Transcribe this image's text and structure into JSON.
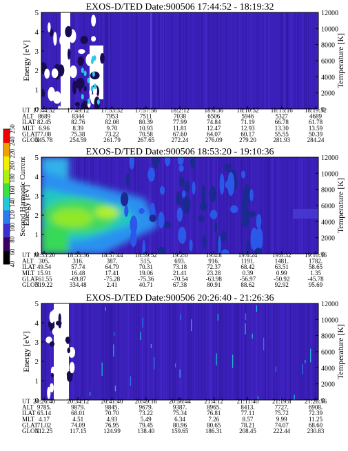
{
  "colors": {
    "background": "#ffffff",
    "plot_base": "#3a1fb8",
    "scale": [
      "#000000",
      "#3a0060",
      "#3b2fd0",
      "#2a7af0",
      "#20c8d8",
      "#3ce040",
      "#b0f010",
      "#f0f000",
      "#f0a000",
      "#f00000"
    ]
  },
  "colorbar": {
    "label": "Second Harmonic Current",
    "ticks": [
      "40",
      "60",
      "80",
      "100",
      "120",
      "140",
      "160",
      "180",
      "200",
      "220",
      "240",
      "250"
    ]
  },
  "chart_data": [
    {
      "type": "heatmap",
      "title": "EXOS-D/TED   Date:900506   17:44:52 - 18:19:32",
      "ylabel": "Energy [eV]",
      "ylabel_right": "Temperature [K]",
      "ylim": [
        0,
        5
      ],
      "yticks": [
        "0",
        "1",
        "2",
        "3",
        "4",
        "5"
      ],
      "ylim_right": [
        0,
        12000
      ],
      "yticks_right": [
        "0",
        "2000",
        "4000",
        "6000",
        "8000",
        "10000",
        "12000"
      ],
      "row_labels": [
        "UT",
        "ALT",
        "ILAT",
        "MLT",
        "GLAT",
        "GLON"
      ],
      "columns": [
        [
          "17:44:52",
          "8689",
          "82.45",
          "6.96",
          "77.08",
          "245.78"
        ],
        [
          "17:49:12",
          "8344",
          "82.76",
          "8.39",
          "75.38",
          "254.59"
        ],
        [
          "17:53:32",
          "7953",
          "82.08",
          "9.70",
          "73.22",
          "261.79"
        ],
        [
          "17:57:56",
          "7511",
          "80.39",
          "10.93",
          "70.58",
          "267.65"
        ],
        [
          "18:2:12",
          "7038",
          "77.99",
          "11.81",
          "67.60",
          "272.24"
        ],
        [
          "18:6:36",
          "6506",
          "74.84",
          "12.47",
          "64.07",
          "276.09"
        ],
        [
          "18:10:52",
          "5946",
          "71.19",
          "12.93",
          "60.17",
          "279.20"
        ],
        [
          "18:15:16",
          "5327",
          "66.78",
          "13.30",
          "55.55",
          "281.93"
        ],
        [
          "18:19:32",
          "4689",
          "61.78",
          "13.59",
          "50.39",
          "284.24"
        ]
      ]
    },
    {
      "type": "heatmap",
      "title": "EXOS-D/TED   Date:900506   18:53:20 - 19:10:36",
      "ylabel": "Energy [eV]",
      "ylabel_right": "Temperature [K]",
      "ylim": [
        0,
        5
      ],
      "yticks": [
        "0",
        "1",
        "2",
        "3",
        "4",
        "5"
      ],
      "ylim_right": [
        0,
        12000
      ],
      "yticks_right": [
        "0",
        "2000",
        "4000",
        "6000",
        "8000",
        "10000",
        "12000"
      ],
      "row_labels": [
        "UT",
        "ALT",
        "ILAT",
        "MLT",
        "GLAT",
        "GLON"
      ],
      "columns": [
        [
          "18:53:20",
          "305.",
          "49.54",
          "15.91",
          "-61.55",
          "319.22"
        ],
        [
          "18:55:36",
          "316.",
          "57.74",
          "16.48",
          "-69.87",
          "334.48"
        ],
        [
          "18:57:44",
          "387.",
          "64.79",
          "17.41",
          "-75.28",
          "2.41"
        ],
        [
          "18:59:52",
          "515.",
          "70.31",
          "19.06",
          "-75.36",
          "40.71"
        ],
        [
          "19:2:0",
          "693.",
          "73.18",
          "21.41",
          "-70.54",
          "67.38"
        ],
        [
          "19:4:8",
          "916.",
          "72.37",
          "23.28",
          "-63.98",
          "80.91"
        ],
        [
          "19:6:24",
          "1191.",
          "68.42",
          "0.39",
          "-56.97",
          "88.62"
        ],
        [
          "19:8:32",
          "1481.",
          "63.51",
          "0.99",
          "-50.92",
          "92.92"
        ],
        [
          "19:10:36",
          "1782.",
          "58.65",
          "1.35",
          "-45.78",
          "95.69"
        ]
      ]
    },
    {
      "type": "heatmap",
      "title": "EXOS-D/TED   Date:900506   20:26:40 - 21:26:36",
      "ylabel": "Energy [eV]",
      "ylabel_right": "Temperature [K]",
      "ylim": [
        0,
        5
      ],
      "yticks": [
        "0",
        "1",
        "2",
        "3",
        "4",
        "5"
      ],
      "ylim_right": [
        0,
        12000
      ],
      "yticks_right": [
        "0",
        "2000",
        "4000",
        "6000",
        "8000",
        "10000",
        "12000"
      ],
      "row_labels": [
        "UT",
        "ALT",
        "ILAT",
        "MLT",
        "GLAT",
        "GLON"
      ],
      "columns": [
        [
          "20:26:40",
          "9785.",
          "65.14",
          "4.17",
          "71.02",
          "112.25"
        ],
        [
          "20:34:12",
          "9879.",
          "68.01",
          "4.51",
          "74.09",
          "117.15"
        ],
        [
          "20:41:40",
          "9845.",
          "70.70",
          "4.93",
          "76.95",
          "124.99"
        ],
        [
          "20:49:16",
          "9679.",
          "73.22",
          "5.49",
          "79.45",
          "138.40"
        ],
        [
          "20:56:44",
          "9387.",
          "75.34",
          "6.34",
          "80.96",
          "159.65"
        ],
        [
          "21:4:12",
          "8965.",
          "76.81",
          "7.26",
          "80.65",
          "186.31"
        ],
        [
          "21:11:40",
          "8413.",
          "77.11",
          "8.57",
          "78.21",
          "208.45"
        ],
        [
          "21:19:8",
          "7727.",
          "75.72",
          "9.99",
          "74.07",
          "222.44"
        ],
        [
          "21:26:36",
          "6908.",
          "72.39",
          "11.25",
          "68.60",
          "230.83"
        ]
      ]
    }
  ]
}
